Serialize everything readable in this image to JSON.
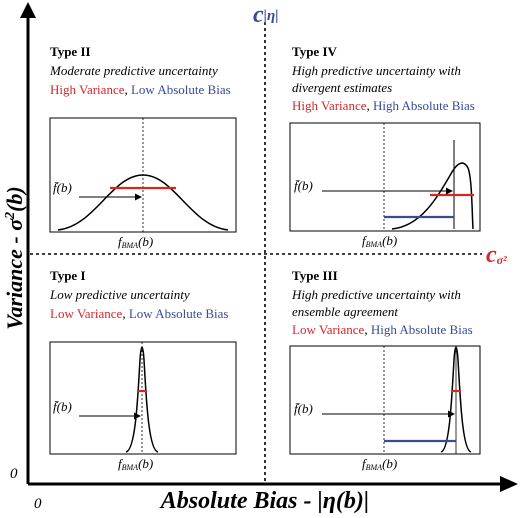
{
  "axes": {
    "y_label_main": "Variance - σ",
    "y_label_sup": "2",
    "y_label_tail": "(b)",
    "x_label": "Absolute Bias - |η(b)|",
    "origin_y": "0",
    "origin_x": "0",
    "c_eta_c": "c",
    "c_eta_sub": "|η|",
    "c_sigma_c": "c",
    "c_sigma_sub": "σ²"
  },
  "quadrants": {
    "type2": {
      "title": "Type II",
      "desc": [
        "Moderate predictive uncertainty"
      ],
      "var": "High Variance",
      "sep": ", ",
      "bias": "Low Absolute Bias"
    },
    "type4": {
      "title": "Type IV",
      "desc": [
        "High predictive uncertainty with",
        "divergent estimates"
      ],
      "var": "High Variance",
      "sep": ", ",
      "bias": "High Absolute Bias"
    },
    "type1": {
      "title": "Type I",
      "desc": [
        "Low predictive uncertainty"
      ],
      "var": "Low Variance",
      "sep": ", ",
      "bias": "Low Absolute Bias"
    },
    "type3": {
      "title": "Type III",
      "desc": [
        "High predictive uncertainty with",
        "ensemble agreement"
      ],
      "var": "Low Variance",
      "sep": ", ",
      "bias": "High Absolute Bias"
    }
  },
  "plot_labels": {
    "fbar": "f̄(b)",
    "fbma_f": "f",
    "fbma_sub": "BMA",
    "fbma_tail": "(b)"
  },
  "colors": {
    "variance": "#d62728",
    "bias": "#3a4a9a",
    "threshold": "#3a4a9a",
    "threshold_sigma": "#d62728"
  }
}
